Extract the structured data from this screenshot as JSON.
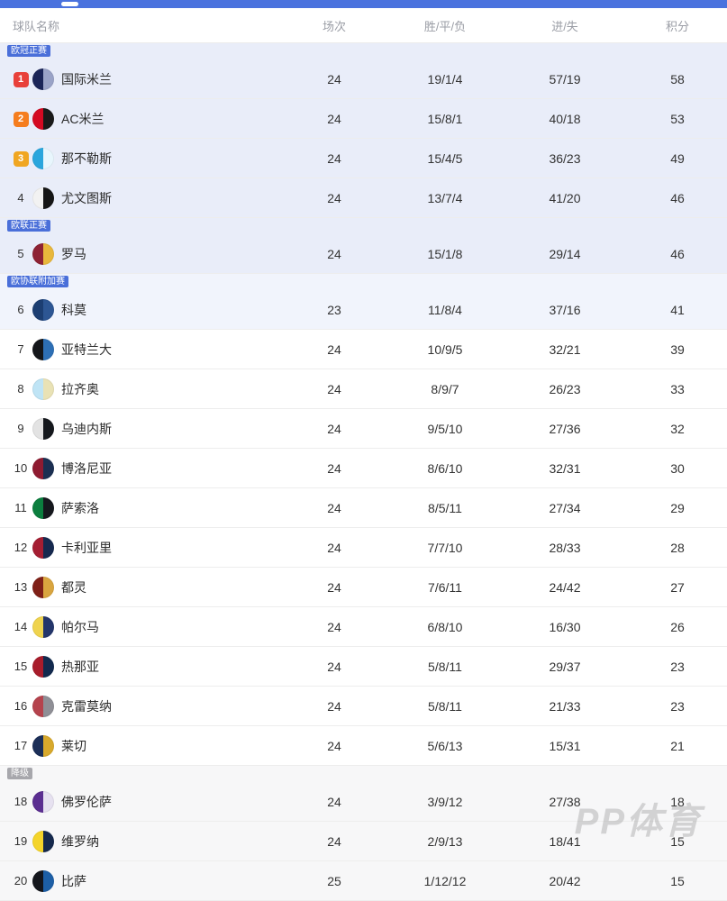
{
  "top_bar": {
    "color": "#4a72de",
    "pill": "tab-indicator"
  },
  "watermark": "PP体育",
  "rank_colors": {
    "1": "#e8403a",
    "2": "#f57d1e",
    "3": "#f0a622"
  },
  "zone_badge_colors": {
    "blue": "#4a6fd9",
    "gray": "#a7a7ac"
  },
  "table": {
    "headers": {
      "team": "球队名称",
      "played": "场次",
      "wdl": "胜/平/负",
      "goals": "进/失",
      "points": "积分"
    },
    "rows": [
      {
        "rank": "1",
        "team": "国际米兰",
        "played": "24",
        "wdl": "19/1/4",
        "goals": "57/19",
        "points": "58",
        "badge": "欧冠正赛",
        "badge_style": "blue",
        "zone": "zone-blue",
        "rank_color": "#e8403a",
        "logo_colors": [
          "#1b2558",
          "#9aa3c7"
        ]
      },
      {
        "rank": "2",
        "team": "AC米兰",
        "played": "24",
        "wdl": "15/8/1",
        "goals": "40/18",
        "points": "53",
        "badge": null,
        "badge_style": null,
        "zone": "zone-blue",
        "rank_color": "#f57d1e",
        "logo_colors": [
          "#d40a22",
          "#1a1a1a"
        ]
      },
      {
        "rank": "3",
        "team": "那不勒斯",
        "played": "24",
        "wdl": "15/4/5",
        "goals": "36/23",
        "points": "49",
        "badge": null,
        "badge_style": null,
        "zone": "zone-blue",
        "rank_color": "#f0a622",
        "logo_colors": [
          "#2aa6dd",
          "#e8f6fd"
        ]
      },
      {
        "rank": "4",
        "team": "尤文图斯",
        "played": "24",
        "wdl": "13/7/4",
        "goals": "41/20",
        "points": "46",
        "badge": null,
        "badge_style": null,
        "zone": "zone-blue",
        "rank_color": null,
        "logo_colors": [
          "#f2f2f2",
          "#161616"
        ]
      },
      {
        "rank": "5",
        "team": "罗马",
        "played": "24",
        "wdl": "15/1/8",
        "goals": "29/14",
        "points": "46",
        "badge": "欧联正赛",
        "badge_style": "blue",
        "zone": "zone-blue",
        "rank_color": null,
        "logo_colors": [
          "#8e2234",
          "#e8b73c"
        ]
      },
      {
        "rank": "6",
        "team": "科莫",
        "played": "23",
        "wdl": "11/8/4",
        "goals": "37/16",
        "points": "41",
        "badge": "欧协联附加赛",
        "badge_style": "blue",
        "zone": "zone-blue-light",
        "rank_color": null,
        "logo_colors": [
          "#1c3e72",
          "#2d5693"
        ]
      },
      {
        "rank": "7",
        "team": "亚特兰大",
        "played": "24",
        "wdl": "10/9/5",
        "goals": "32/21",
        "points": "39",
        "badge": null,
        "badge_style": null,
        "zone": null,
        "rank_color": null,
        "logo_colors": [
          "#14161a",
          "#2d6fb5"
        ]
      },
      {
        "rank": "8",
        "team": "拉齐奥",
        "played": "24",
        "wdl": "8/9/7",
        "goals": "26/23",
        "points": "33",
        "badge": null,
        "badge_style": null,
        "zone": null,
        "rank_color": null,
        "logo_colors": [
          "#bfe4f5",
          "#e9e2b5"
        ]
      },
      {
        "rank": "9",
        "team": "乌迪内斯",
        "played": "24",
        "wdl": "9/5/10",
        "goals": "27/36",
        "points": "32",
        "badge": null,
        "badge_style": null,
        "zone": null,
        "rank_color": null,
        "logo_colors": [
          "#e3e3e3",
          "#15181d"
        ]
      },
      {
        "rank": "10",
        "team": "博洛尼亚",
        "played": "24",
        "wdl": "8/6/10",
        "goals": "32/31",
        "points": "30",
        "badge": null,
        "badge_style": null,
        "zone": null,
        "rank_color": null,
        "logo_colors": [
          "#8f1b31",
          "#1b2f52"
        ]
      },
      {
        "rank": "11",
        "team": "萨索洛",
        "played": "24",
        "wdl": "8/5/11",
        "goals": "27/34",
        "points": "29",
        "badge": null,
        "badge_style": null,
        "zone": null,
        "rank_color": null,
        "logo_colors": [
          "#0b7e3e",
          "#15181d"
        ]
      },
      {
        "rank": "12",
        "team": "卡利亚里",
        "played": "24",
        "wdl": "7/7/10",
        "goals": "28/33",
        "points": "28",
        "badge": null,
        "badge_style": null,
        "zone": null,
        "rank_color": null,
        "logo_colors": [
          "#a51e32",
          "#16294f"
        ]
      },
      {
        "rank": "13",
        "team": "都灵",
        "played": "24",
        "wdl": "7/6/11",
        "goals": "24/42",
        "points": "27",
        "badge": null,
        "badge_style": null,
        "zone": null,
        "rank_color": null,
        "logo_colors": [
          "#7f2017",
          "#d9a53f"
        ]
      },
      {
        "rank": "14",
        "team": "帕尔马",
        "played": "24",
        "wdl": "6/8/10",
        "goals": "16/30",
        "points": "26",
        "badge": null,
        "badge_style": null,
        "zone": null,
        "rank_color": null,
        "logo_colors": [
          "#efd34e",
          "#24366b"
        ]
      },
      {
        "rank": "15",
        "team": "热那亚",
        "played": "24",
        "wdl": "5/8/11",
        "goals": "29/37",
        "points": "23",
        "badge": null,
        "badge_style": null,
        "zone": null,
        "rank_color": null,
        "logo_colors": [
          "#a81c2b",
          "#122a4e"
        ]
      },
      {
        "rank": "16",
        "team": "克雷莫纳",
        "played": "24",
        "wdl": "5/8/11",
        "goals": "21/33",
        "points": "23",
        "badge": null,
        "badge_style": null,
        "zone": null,
        "rank_color": null,
        "logo_colors": [
          "#b5434d",
          "#8f8f96"
        ]
      },
      {
        "rank": "17",
        "team": "莱切",
        "played": "24",
        "wdl": "5/6/13",
        "goals": "15/31",
        "points": "21",
        "badge": null,
        "badge_style": null,
        "zone": null,
        "rank_color": null,
        "logo_colors": [
          "#1c2f58",
          "#d8a92c"
        ]
      },
      {
        "rank": "18",
        "team": "佛罗伦萨",
        "played": "24",
        "wdl": "3/9/12",
        "goals": "27/38",
        "points": "18",
        "badge": "降级",
        "badge_style": "gray",
        "zone": "zone-gray",
        "rank_color": null,
        "logo_colors": [
          "#5b2e91",
          "#e6e1f0"
        ]
      },
      {
        "rank": "19",
        "team": "维罗纳",
        "played": "24",
        "wdl": "2/9/13",
        "goals": "18/41",
        "points": "15",
        "badge": null,
        "badge_style": null,
        "zone": "zone-gray",
        "rank_color": null,
        "logo_colors": [
          "#f4d42a",
          "#15294d"
        ]
      },
      {
        "rank": "20",
        "team": "比萨",
        "played": "25",
        "wdl": "1/12/12",
        "goals": "20/42",
        "points": "15",
        "badge": null,
        "badge_style": null,
        "zone": "zone-gray",
        "rank_color": null,
        "logo_colors": [
          "#14161c",
          "#1d5fa6"
        ]
      }
    ]
  }
}
